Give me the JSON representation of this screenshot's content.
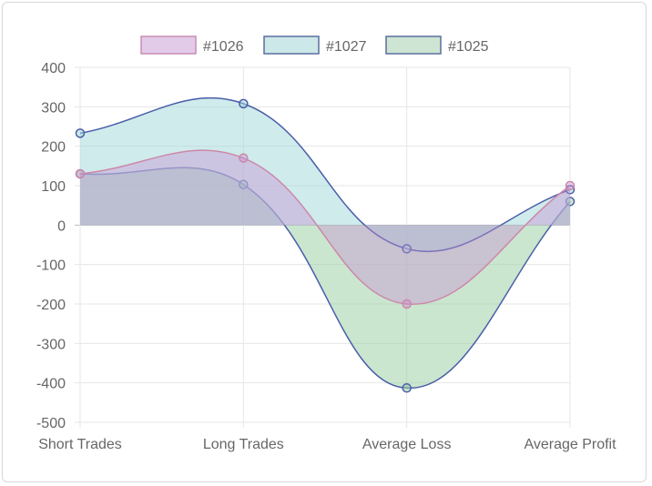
{
  "chart_data": {
    "type": "line",
    "fill": "origin",
    "categories": [
      "Short Trades",
      "Long Trades",
      "Average Loss",
      "Average Profit"
    ],
    "series": [
      {
        "name": "#1026",
        "values": [
          130,
          170,
          -200,
          100
        ],
        "border": "#cc88aa",
        "fill": "rgba(200,140,210,0.40)",
        "legend_fill": "#e2cbe8"
      },
      {
        "name": "#1027",
        "values": [
          233,
          308,
          -60,
          90
        ],
        "border": "#4a5ea8",
        "fill": "rgba(160,215,215,0.50)",
        "legend_fill": "#cde8e8"
      },
      {
        "name": "#1025",
        "values": [
          130,
          103,
          -413,
          60
        ],
        "border": "#4a5ea8",
        "fill": "rgba(150,205,160,0.50)",
        "legend_fill": "#cde5d2"
      }
    ],
    "ylim": [
      -500,
      400
    ],
    "yticks": [
      400,
      300,
      200,
      100,
      0,
      -100,
      -200,
      -300,
      -400,
      -500
    ],
    "grid": true,
    "legend": "top"
  }
}
